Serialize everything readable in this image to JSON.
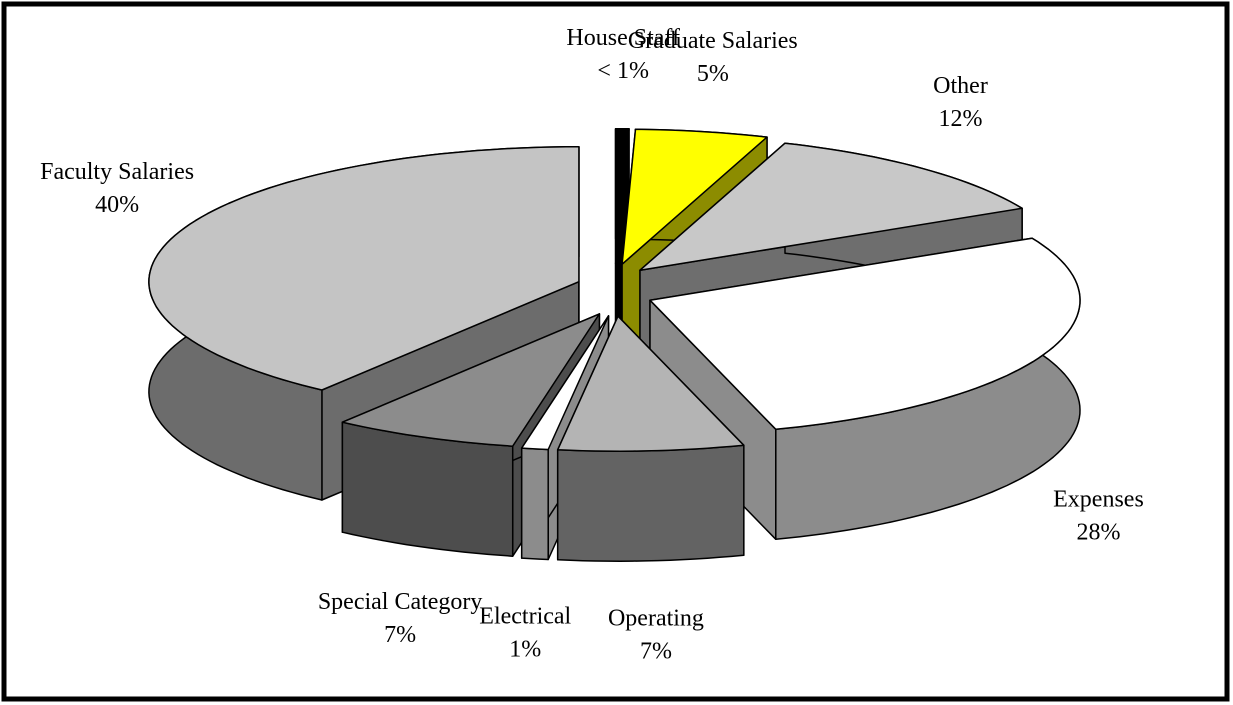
{
  "chart_data": {
    "type": "pie3d",
    "categories": [
      "House Staff",
      "Graduate Salaries",
      "Other",
      "Expenses",
      "Operating",
      "Electrical",
      "Special Category",
      "Faculty Salaries"
    ],
    "values": [
      0.5,
      5,
      12,
      28,
      7,
      1,
      7,
      40
    ],
    "value_labels": [
      "< 1%",
      "5%",
      "12%",
      "28%",
      "7%",
      "1%",
      "7%",
      "40%"
    ],
    "colors": [
      "#000000",
      "#ffff00",
      "#c8c8c8",
      "#ffffff",
      "#b4b4b4",
      "#ffffff",
      "#8c8c8c",
      "#c4c4c4"
    ]
  }
}
